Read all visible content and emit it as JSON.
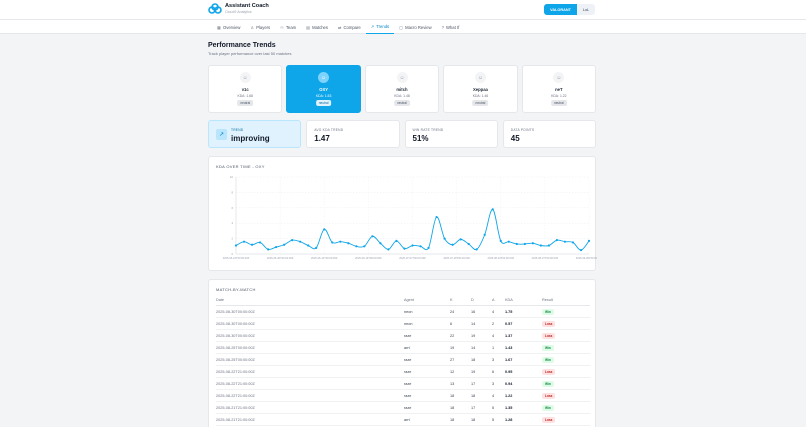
{
  "app": {
    "title": "Assistant Coach",
    "subtitle": "Cloud9 Analytics",
    "games": [
      {
        "label": "VALORANT",
        "active": true
      },
      {
        "label": "LoL",
        "active": false
      }
    ]
  },
  "nav": {
    "tabs": [
      {
        "label": "Overview",
        "icon": "grid-icon",
        "glyph": "▦",
        "active": false
      },
      {
        "label": "Players",
        "icon": "user-icon",
        "glyph": "♙",
        "active": false
      },
      {
        "label": "Team",
        "icon": "users-icon",
        "glyph": "⚇",
        "active": false
      },
      {
        "label": "Matches",
        "icon": "calendar-icon",
        "glyph": "▤",
        "active": false
      },
      {
        "label": "Compare",
        "icon": "compare-icon",
        "glyph": "⇄",
        "active": false
      },
      {
        "label": "Trends",
        "icon": "trend-icon",
        "glyph": "↗",
        "active": true
      },
      {
        "label": "Macro Review",
        "icon": "document-icon",
        "glyph": "▢",
        "active": false
      },
      {
        "label": "What If",
        "icon": "help-icon",
        "glyph": "?",
        "active": false
      }
    ]
  },
  "page": {
    "title": "Performance Trends",
    "subtitle": "Track player performance over last 50 matches"
  },
  "players": [
    {
      "name": "v1c",
      "kda": "KDA: 1.68",
      "badge": "neutral",
      "selected": false
    },
    {
      "name": "OXY",
      "kda": "KDA: 1.53",
      "badge": "neutral",
      "selected": true
    },
    {
      "name": "mitch",
      "kda": "KDA: 1.48",
      "badge": "neutral",
      "selected": false
    },
    {
      "name": "Xeppaa",
      "kda": "KDA: 1.46",
      "badge": "neutral",
      "selected": false
    },
    {
      "name": "neT",
      "kda": "KDA: 1.22",
      "badge": "neutral",
      "selected": false
    }
  ],
  "stats": {
    "trend": {
      "label": "TREND",
      "value": "improving"
    },
    "avg_kda": {
      "label": "AVG KDA TREND",
      "value": "1.47"
    },
    "win_rate": {
      "label": "WIN RATE TREND",
      "value": "51%"
    },
    "data_points": {
      "label": "DATA POINTS",
      "value": "45"
    }
  },
  "chart": {
    "title": "KDA OVER TIME - OXY"
  },
  "chart_data": {
    "type": "line",
    "title": "KDA OVER TIME - OXY",
    "color": "#0ea5e9",
    "ylim": [
      0,
      10
    ],
    "yticks": [
      "10",
      "8",
      "6",
      "4",
      "2",
      "0"
    ],
    "xtick_labels": [
      "2025-05-16T00:00:00Z",
      "2025-05-30T00:00:00Z",
      "2025-06-12T00:00:00Z",
      "2025-06-19T00:00:00Z",
      "2025-07-07T00:00:00Z",
      "2025-07-18T00:00:00Z",
      "2025-08-04T00:00:00Z",
      "2025-08-27T00:00:00Z",
      "2025-09-05T00:00:00Z"
    ],
    "values": [
      1.1,
      1.6,
      1.2,
      1.5,
      0.6,
      0.9,
      1.2,
      1.8,
      1.6,
      1.1,
      0.8,
      3.2,
      1.5,
      1.6,
      1.4,
      1.0,
      1.0,
      2.3,
      1.4,
      0.6,
      1.7,
      0.7,
      1.1,
      1.0,
      0.8,
      4.8,
      2.0,
      1.2,
      1.9,
      1.3,
      0.6,
      2.5,
      5.8,
      1.7,
      1.6,
      1.3,
      1.3,
      1.4,
      1.1,
      1.1,
      1.8,
      1.6,
      1.5,
      0.5,
      1.7
    ],
    "grid": true
  },
  "table": {
    "title": "MATCH-BY-MATCH",
    "headers": {
      "date": "Date",
      "agent": "Agent",
      "k": "K",
      "d": "D",
      "a": "A",
      "kda": "KDA",
      "result": "Result"
    },
    "rows": [
      {
        "date": "2025-08-30T00:00:00Z",
        "agent": "neon",
        "k": "24",
        "d": "16",
        "a": "4",
        "kda": "1.75",
        "result": "Win"
      },
      {
        "date": "2025-08-30T00:00:00Z",
        "agent": "neon",
        "k": "6",
        "d": "14",
        "a": "2",
        "kda": "0.57",
        "result": "Loss"
      },
      {
        "date": "2025-08-30T00:00:00Z",
        "agent": "raze",
        "k": "22",
        "d": "19",
        "a": "4",
        "kda": "1.37",
        "result": "Loss"
      },
      {
        "date": "2025-08-25T00:00:00Z",
        "agent": "arrt",
        "k": "19",
        "d": "14",
        "a": "1",
        "kda": "1.43",
        "result": "Win"
      },
      {
        "date": "2025-08-25T00:00:00Z",
        "agent": "raze",
        "k": "27",
        "d": "18",
        "a": "3",
        "kda": "1.67",
        "result": "Win"
      },
      {
        "date": "2025-08-22T21:00:00Z",
        "agent": "raze",
        "k": "12",
        "d": "19",
        "a": "6",
        "kda": "0.95",
        "result": "Loss"
      },
      {
        "date": "2025-08-22T21:00:00Z",
        "agent": "raze",
        "k": "13",
        "d": "17",
        "a": "3",
        "kda": "0.94",
        "result": "Win"
      },
      {
        "date": "2025-08-22T21:00:00Z",
        "agent": "raze",
        "k": "18",
        "d": "18",
        "a": "4",
        "kda": "1.22",
        "result": "Loss"
      },
      {
        "date": "2025-08-21T21:00:00Z",
        "agent": "raze",
        "k": "18",
        "d": "17",
        "a": "5",
        "kda": "1.35",
        "result": "Win"
      },
      {
        "date": "2025-08-21T21:00:00Z",
        "agent": "arrt",
        "k": "18",
        "d": "18",
        "a": "5",
        "kda": "1.28",
        "result": "Loss"
      }
    ]
  }
}
